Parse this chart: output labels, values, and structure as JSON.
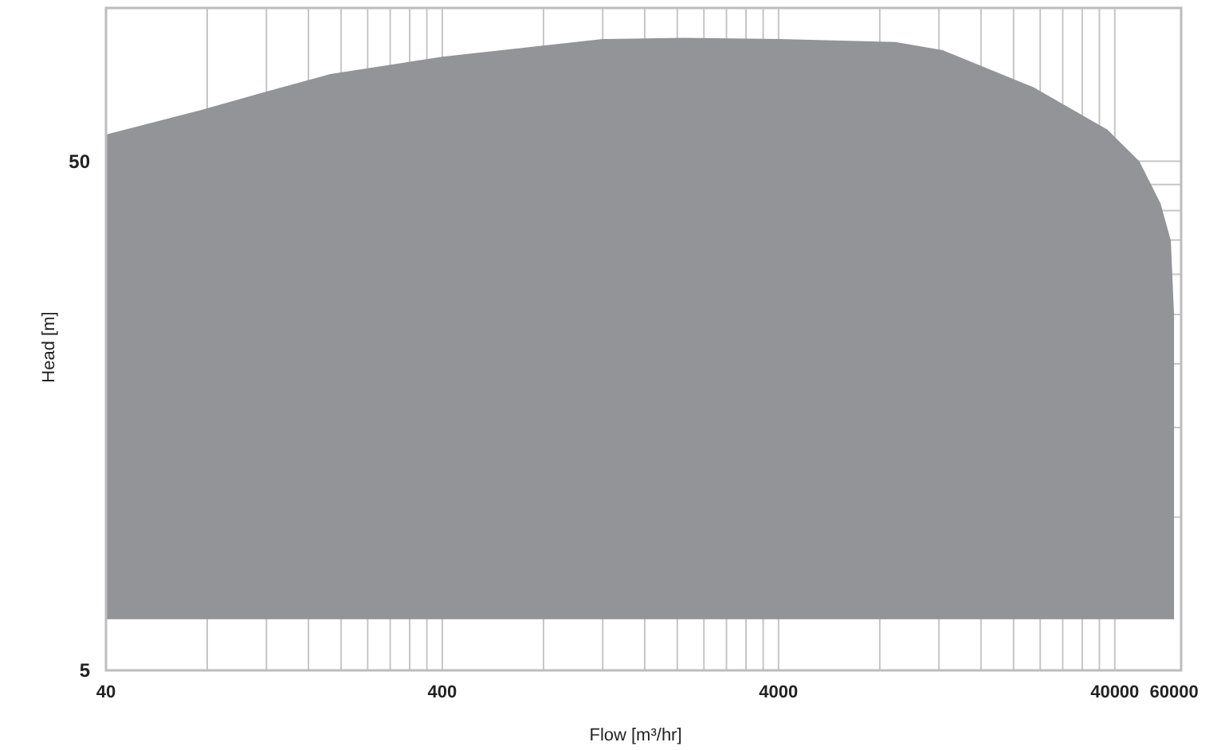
{
  "chart_data": {
    "type": "area",
    "xlabel": "Flow [m³/hr]",
    "ylabel": "Head [m]",
    "log": "xy",
    "grid": true,
    "x": [
      40,
      80,
      120,
      186,
      400,
      1200,
      2100,
      4000,
      8900,
      12300,
      22900,
      38000,
      47300,
      54700,
      58700,
      60000
    ],
    "series": [
      {
        "color": "#939497",
        "values": [
          null,
          null,
          null,
          null,
          null,
          null,
          null,
          null,
          null,
          null,
          null,
          null,
          null,
          null,
          null,
          null
        ],
        "upper": [
          56.4,
          63.5,
          68.5,
          74.2,
          80.2,
          86.9,
          87.4,
          86.9,
          85.7,
          82.6,
          69.9,
          57.7,
          50,
          41.3,
          34.9,
          25
        ],
        "lower": [
          6.3,
          6.3,
          6.3,
          6.3,
          6.3,
          6.3,
          6.3,
          6.3,
          6.3,
          6.3,
          6.3,
          6.3,
          6.3,
          6.3,
          6.3,
          6.3
        ]
      }
    ],
    "xlim": [
      40,
      63000
    ],
    "ylim": [
      5,
      100
    ],
    "xticks": [
      40,
      400,
      4000,
      40000,
      60000
    ],
    "yticks": [
      5,
      50
    ]
  }
}
